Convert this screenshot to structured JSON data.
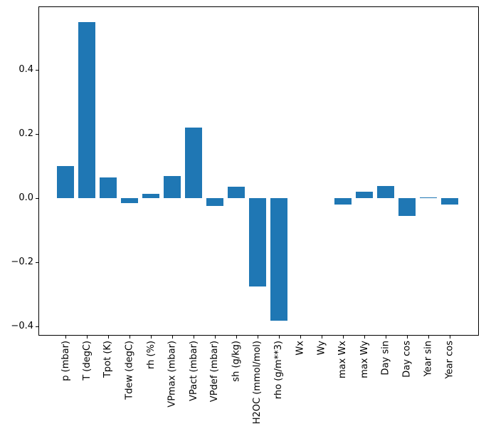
{
  "figure": {
    "background": "#ffffff",
    "axes_color": "#000000"
  },
  "chart_data": {
    "type": "bar",
    "title": "",
    "xlabel": "",
    "ylabel": "",
    "bar_color": "#1f77b4",
    "grid": false,
    "legend": false,
    "categories": [
      "p (mbar)",
      "T (degC)",
      "Tpot (K)",
      "Tdew (degC)",
      "rh (%)",
      "VPmax (mbar)",
      "VPact (mbar)",
      "VPdef (mbar)",
      "sh (g/kg)",
      "H2OC (mmol/mol)",
      "rho (g/m**3)",
      "Wx",
      "Wy",
      "max Wx",
      "max Wy",
      "Day sin",
      "Day cos",
      "Year sin",
      "Year cos"
    ],
    "values": [
      0.1,
      0.55,
      0.066,
      -0.015,
      0.013,
      0.069,
      0.22,
      -0.024,
      0.037,
      -0.275,
      -0.382,
      0.0,
      0.0,
      -0.019,
      0.02,
      0.038,
      -0.056,
      0.003,
      -0.019
    ],
    "ylim": [
      -0.4283,
      0.5983
    ],
    "yticks": {
      "values": [
        0.4,
        0.2,
        0.0,
        -0.2,
        -0.4
      ],
      "labels": [
        "0.4",
        "0.2",
        "0.0",
        "−0.2",
        "−0.4"
      ]
    }
  }
}
